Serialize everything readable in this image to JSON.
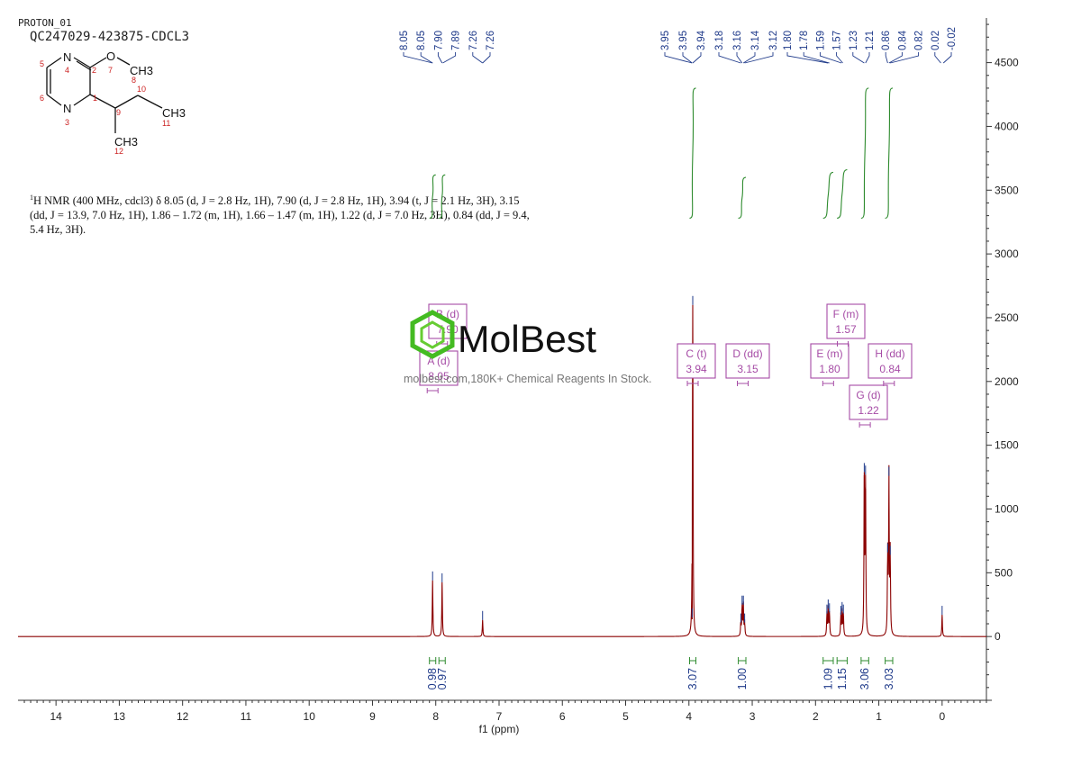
{
  "header": {
    "experiment": "PROTON_01",
    "sample_id": "QC247029-423875-CDCL3"
  },
  "structure_labels": {
    "atoms": [
      "N",
      "O",
      "CH3",
      "N",
      "CH3",
      "CH3"
    ],
    "numbers": [
      "5",
      "4",
      "2",
      "7",
      "8",
      "6",
      "1",
      "10",
      "9",
      "11",
      "3",
      "12"
    ]
  },
  "nmr_description": {
    "prefix": "1",
    "text": "H NMR (400 MHz, cdcl3) δ 8.05 (d, J = 2.8 Hz, 1H), 7.90 (d, J = 2.8 Hz, 1H), 3.94 (t, J = 2.1 Hz, 3H), 3.15 (dd, J = 13.9, 7.0 Hz, 1H), 1.86 – 1.72 (m, 1H), 1.66 – 1.47 (m, 1H), 1.22 (d, J = 7.0 Hz, 3H), 0.84 (dd, J = 9.4, 5.4 Hz, 3H)."
  },
  "watermark": {
    "brand": "MolBest",
    "tagline": "molbest.com,180K+ Chemical Reagents In Stock."
  },
  "colors": {
    "spectrum": "#8b0000",
    "integral": "#2e8b2e",
    "peak_label": "#1f3a8a",
    "multiplet_box": "#a64ca6",
    "axis": "#333333",
    "logo": "#44bb22"
  },
  "chart_data": {
    "type": "line",
    "xlabel": "f1 (ppm)",
    "xlim": [
      14.6,
      -0.7
    ],
    "ylim": [
      -500,
      4850
    ],
    "x_ticks": [
      14,
      13,
      12,
      11,
      10,
      9,
      8,
      7,
      6,
      5,
      4,
      3,
      2,
      1,
      0
    ],
    "y_ticks": [
      4500,
      4000,
      3500,
      3000,
      2500,
      2000,
      1500,
      1000,
      500,
      0
    ],
    "y_tick_labels": [
      "4500",
      "4000",
      "3500",
      "3000",
      "2500",
      "2000",
      "1500",
      "1000",
      "500",
      "0"
    ],
    "peaks": [
      {
        "ppm": 8.05,
        "height": 440
      },
      {
        "ppm": 7.9,
        "height": 425
      },
      {
        "ppm": 7.26,
        "height": 130
      },
      {
        "ppm": 3.95,
        "height": 150
      },
      {
        "ppm": 3.94,
        "height": 2600
      },
      {
        "ppm": 3.18,
        "height": 110
      },
      {
        "ppm": 3.16,
        "height": 250
      },
      {
        "ppm": 3.14,
        "height": 250
      },
      {
        "ppm": 3.12,
        "height": 110
      },
      {
        "ppm": 1.82,
        "height": 180
      },
      {
        "ppm": 1.8,
        "height": 220
      },
      {
        "ppm": 1.78,
        "height": 190
      },
      {
        "ppm": 1.6,
        "height": 170
      },
      {
        "ppm": 1.58,
        "height": 200
      },
      {
        "ppm": 1.56,
        "height": 180
      },
      {
        "ppm": 1.23,
        "height": 1290
      },
      {
        "ppm": 1.21,
        "height": 1270
      },
      {
        "ppm": 0.86,
        "height": 660
      },
      {
        "ppm": 0.84,
        "height": 1260
      },
      {
        "ppm": 0.82,
        "height": 640
      },
      {
        "ppm": 0.0,
        "height": 170
      }
    ],
    "peak_labels": [
      {
        "group": 1,
        "values": [
          "8.05",
          "8.05",
          "7.90",
          "7.89",
          "7.26",
          "7.26"
        ]
      },
      {
        "group": 2,
        "values": [
          "3.95",
          "3.95",
          "3.94",
          "3.18",
          "3.16",
          "3.14",
          "3.12"
        ]
      },
      {
        "group": 3,
        "values": [
          "1.80",
          "1.78",
          "1.59",
          "1.57",
          "1.23",
          "1.21",
          "0.86",
          "0.84",
          "0.82",
          "0.02",
          "-0.02"
        ]
      }
    ],
    "integrals": [
      {
        "from": 8.1,
        "to": 8.0,
        "value": "0.98",
        "y_start": 3280,
        "y_end": 3620
      },
      {
        "from": 7.95,
        "to": 7.85,
        "value": "0.97",
        "y_start": 3280,
        "y_end": 3620
      },
      {
        "from": 3.99,
        "to": 3.89,
        "value": "3.07",
        "y_start": 3280,
        "y_end": 4300
      },
      {
        "from": 3.22,
        "to": 3.1,
        "value": "1.00",
        "y_start": 3280,
        "y_end": 3600
      },
      {
        "from": 1.88,
        "to": 1.72,
        "value": "1.09",
        "y_start": 3280,
        "y_end": 3640
      },
      {
        "from": 1.66,
        "to": 1.5,
        "value": "1.15",
        "y_start": 3280,
        "y_end": 3660
      },
      {
        "from": 1.28,
        "to": 1.16,
        "value": "3.06",
        "y_start": 3280,
        "y_end": 4300
      },
      {
        "from": 0.9,
        "to": 0.78,
        "value": "3.03",
        "y_start": 3280,
        "y_end": 4300
      }
    ],
    "multiplets": [
      {
        "label": "A (d)",
        "shift": "8.05",
        "ppm": 8.05
      },
      {
        "label": "B (d)",
        "shift": "7.90",
        "ppm": 7.9
      },
      {
        "label": "C (t)",
        "shift": "3.94",
        "ppm": 3.94
      },
      {
        "label": "D (dd)",
        "shift": "3.15",
        "ppm": 3.15
      },
      {
        "label": "E (m)",
        "shift": "1.80",
        "ppm": 1.8
      },
      {
        "label": "F (m)",
        "shift": "1.57",
        "ppm": 1.57
      },
      {
        "label": "G (d)",
        "shift": "1.22",
        "ppm": 1.22
      },
      {
        "label": "H (dd)",
        "shift": "0.84",
        "ppm": 0.84
      }
    ]
  }
}
